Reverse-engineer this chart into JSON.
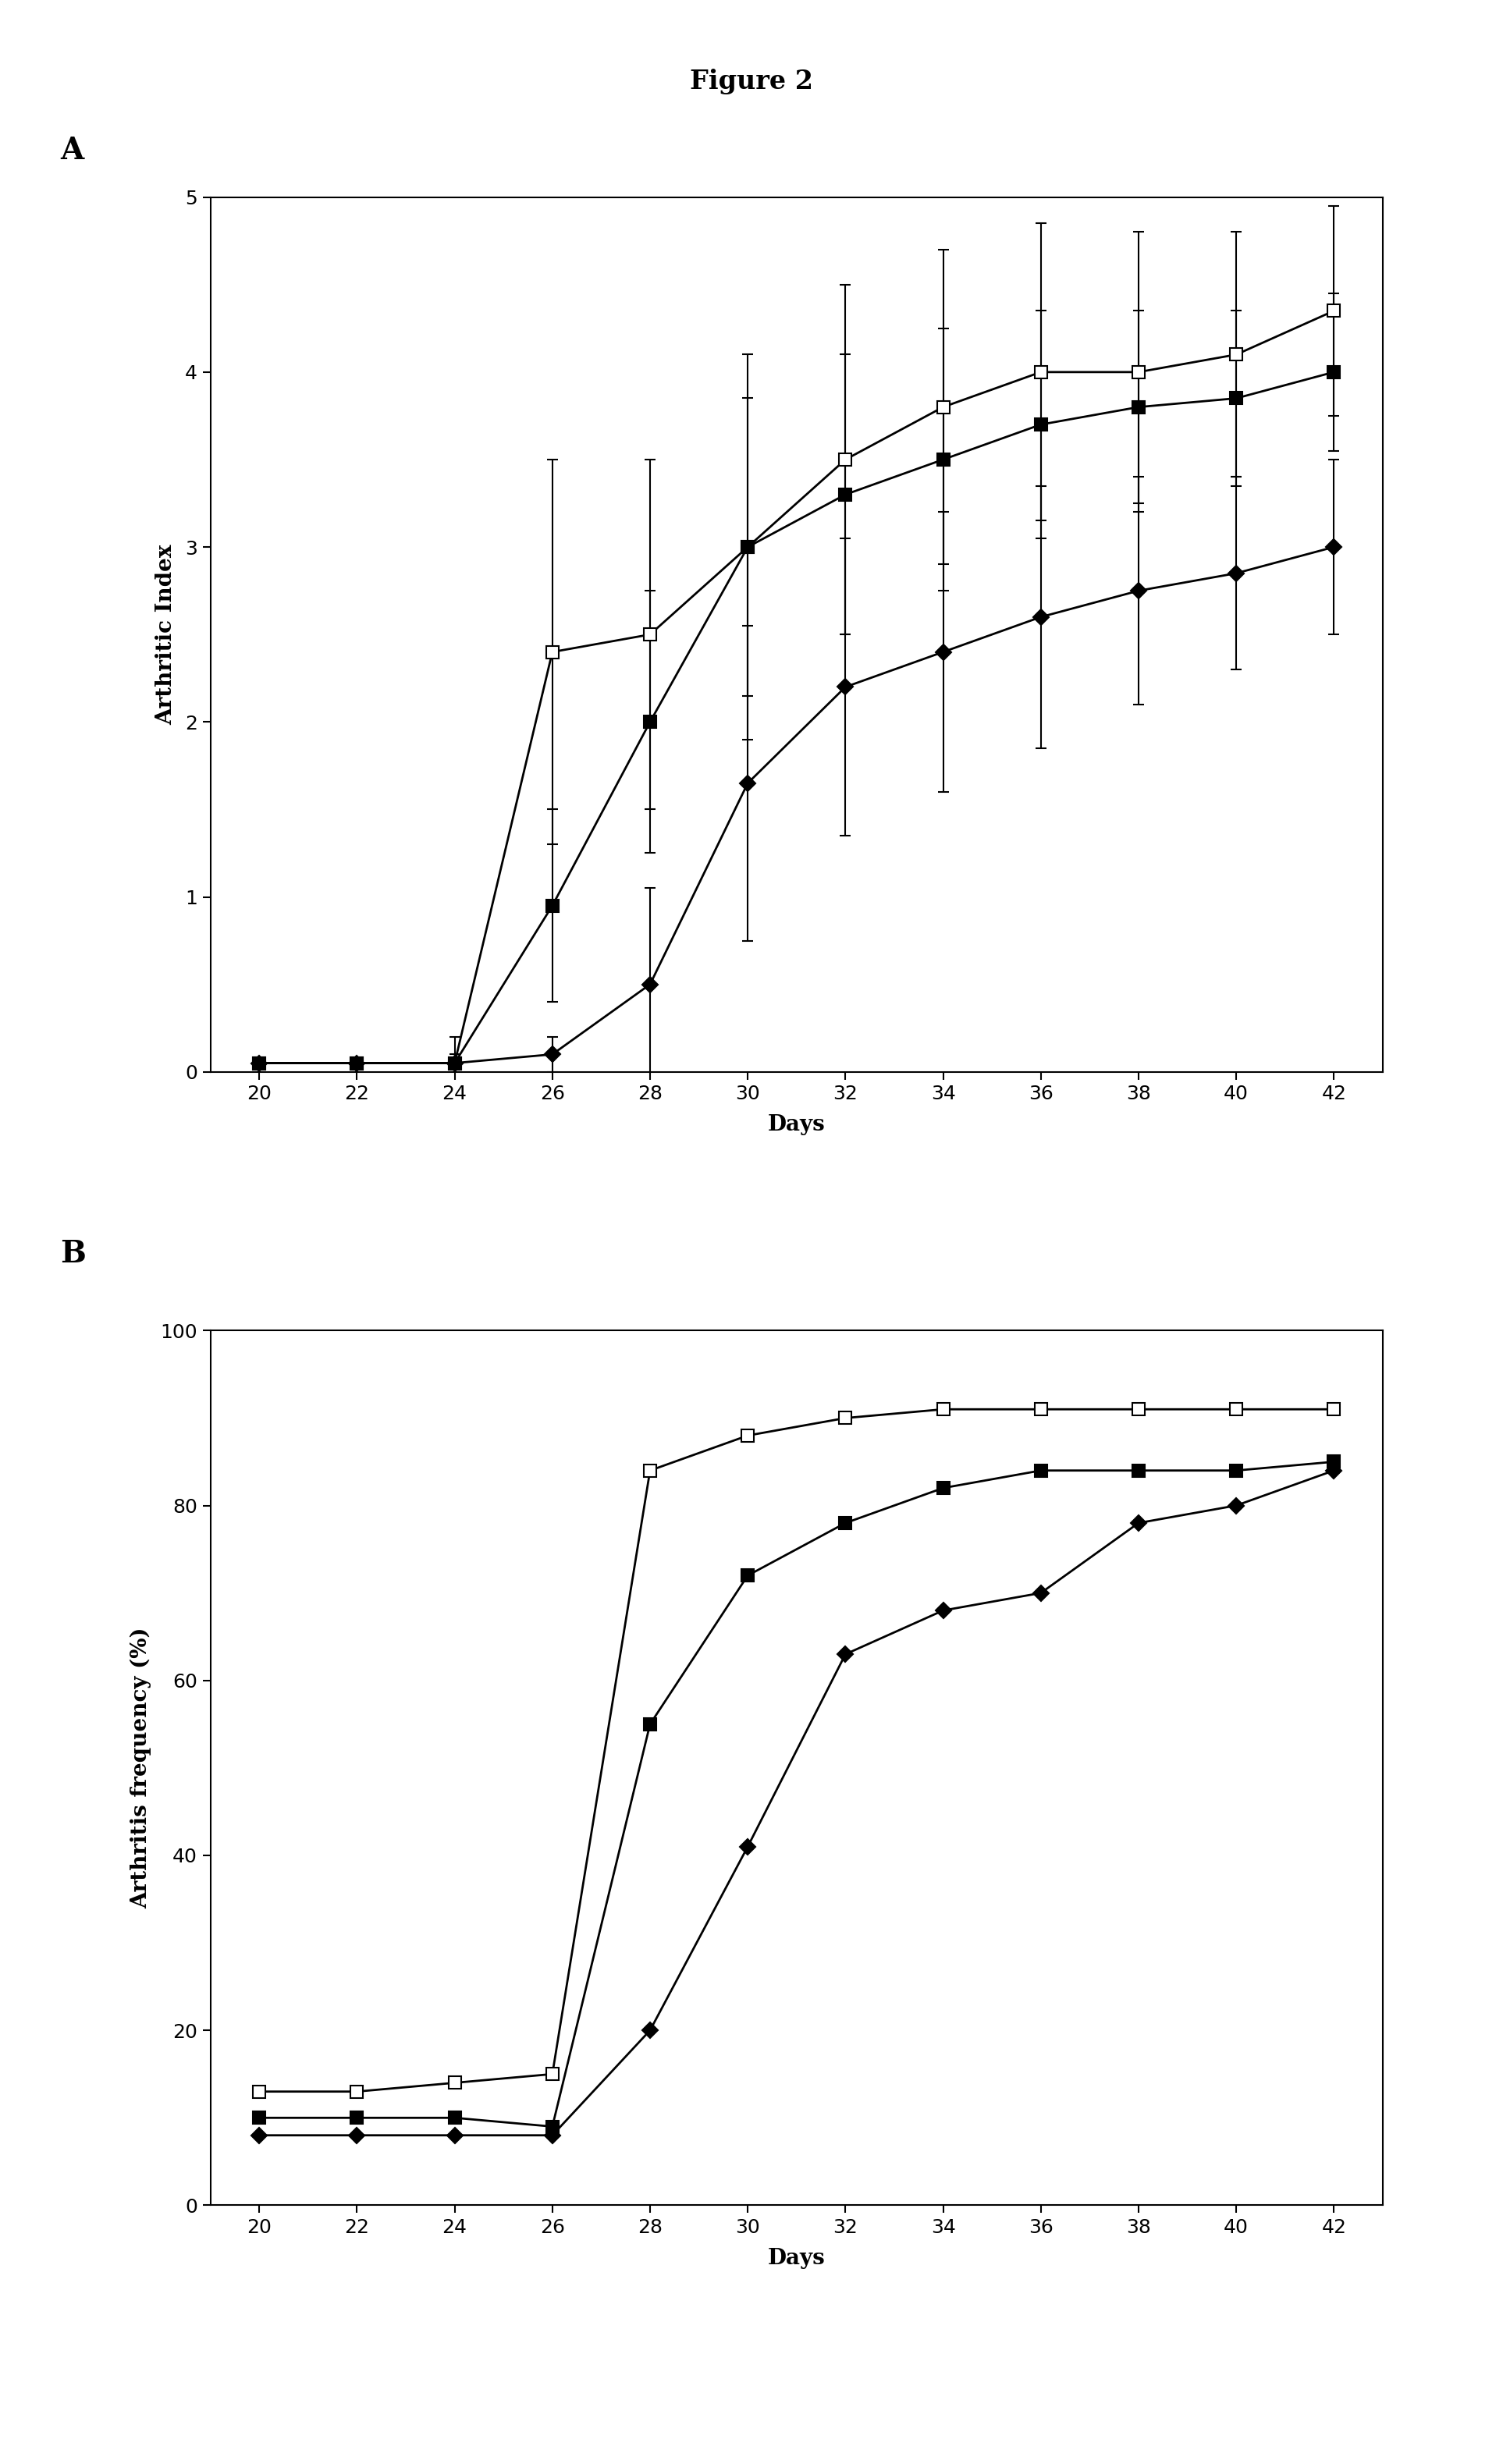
{
  "title": "Figure 2",
  "panel_A": {
    "label": "A",
    "ylabel": "Arthritic Index",
    "xlabel": "Days",
    "xlim": [
      19,
      43
    ],
    "ylim": [
      0,
      5
    ],
    "xticks": [
      20,
      22,
      24,
      26,
      28,
      30,
      32,
      34,
      36,
      38,
      40,
      42
    ],
    "yticks": [
      0,
      1,
      2,
      3,
      4,
      5
    ],
    "series": [
      {
        "name": "open_square",
        "x": [
          20,
          22,
          24,
          26,
          28,
          30,
          32,
          34,
          36,
          38,
          40,
          42
        ],
        "y": [
          0.05,
          0.05,
          0.05,
          2.4,
          2.5,
          3.0,
          3.5,
          3.8,
          4.0,
          4.0,
          4.1,
          4.35
        ],
        "yerr": [
          0.0,
          0.0,
          0.15,
          1.1,
          1.0,
          1.1,
          1.0,
          0.9,
          0.85,
          0.8,
          0.7,
          0.6
        ],
        "marker": "s",
        "marker_fill": "white",
        "marker_edge": "black",
        "linestyle": "-",
        "color": "black",
        "markersize": 11
      },
      {
        "name": "filled_square",
        "x": [
          20,
          22,
          24,
          26,
          28,
          30,
          32,
          34,
          36,
          38,
          40,
          42
        ],
        "y": [
          0.05,
          0.05,
          0.05,
          0.95,
          2.0,
          3.0,
          3.3,
          3.5,
          3.7,
          3.8,
          3.85,
          4.0
        ],
        "yerr": [
          0.0,
          0.0,
          0.05,
          0.55,
          0.75,
          0.85,
          0.8,
          0.75,
          0.65,
          0.55,
          0.5,
          0.45
        ],
        "marker": "s",
        "marker_fill": "black",
        "marker_edge": "black",
        "linestyle": "-",
        "color": "black",
        "markersize": 11
      },
      {
        "name": "filled_diamond",
        "x": [
          20,
          22,
          24,
          26,
          28,
          30,
          32,
          34,
          36,
          38,
          40,
          42
        ],
        "y": [
          0.05,
          0.05,
          0.05,
          0.1,
          0.5,
          1.65,
          2.2,
          2.4,
          2.6,
          2.75,
          2.85,
          3.0
        ],
        "yerr": [
          0.0,
          0.0,
          0.0,
          0.1,
          0.55,
          0.9,
          0.85,
          0.8,
          0.75,
          0.65,
          0.55,
          0.5
        ],
        "marker": "D",
        "marker_fill": "black",
        "marker_edge": "black",
        "linestyle": "-",
        "color": "black",
        "markersize": 10
      }
    ]
  },
  "panel_B": {
    "label": "B",
    "ylabel": "Arthritis frequency (%)",
    "xlabel": "Days",
    "xlim": [
      19,
      43
    ],
    "ylim": [
      0,
      100
    ],
    "xticks": [
      20,
      22,
      24,
      26,
      28,
      30,
      32,
      34,
      36,
      38,
      40,
      42
    ],
    "yticks": [
      0,
      20,
      40,
      60,
      80,
      100
    ],
    "series": [
      {
        "name": "open_square",
        "x": [
          20,
          22,
          24,
          26,
          28,
          30,
          32,
          34,
          36,
          38,
          40,
          42
        ],
        "y": [
          13,
          13,
          14,
          15,
          84,
          88,
          90,
          91,
          91,
          91,
          91,
          91
        ],
        "marker": "s",
        "marker_fill": "white",
        "marker_edge": "black",
        "linestyle": "-",
        "color": "black",
        "markersize": 11
      },
      {
        "name": "filled_square",
        "x": [
          20,
          22,
          24,
          26,
          28,
          30,
          32,
          34,
          36,
          38,
          40,
          42
        ],
        "y": [
          10,
          10,
          10,
          9,
          55,
          72,
          78,
          82,
          84,
          84,
          84,
          85
        ],
        "marker": "s",
        "marker_fill": "black",
        "marker_edge": "black",
        "linestyle": "-",
        "color": "black",
        "markersize": 11
      },
      {
        "name": "filled_diamond",
        "x": [
          20,
          22,
          24,
          26,
          28,
          30,
          32,
          34,
          36,
          38,
          40,
          42
        ],
        "y": [
          8,
          8,
          8,
          8,
          20,
          41,
          63,
          68,
          70,
          78,
          80,
          84
        ],
        "marker": "D",
        "marker_fill": "black",
        "marker_edge": "black",
        "linestyle": "-",
        "color": "black",
        "markersize": 10
      }
    ]
  },
  "background_color": "#ffffff",
  "title_fontsize": 24,
  "tick_fontsize": 18,
  "axis_label_fontsize": 20,
  "panel_label_fontsize": 28
}
